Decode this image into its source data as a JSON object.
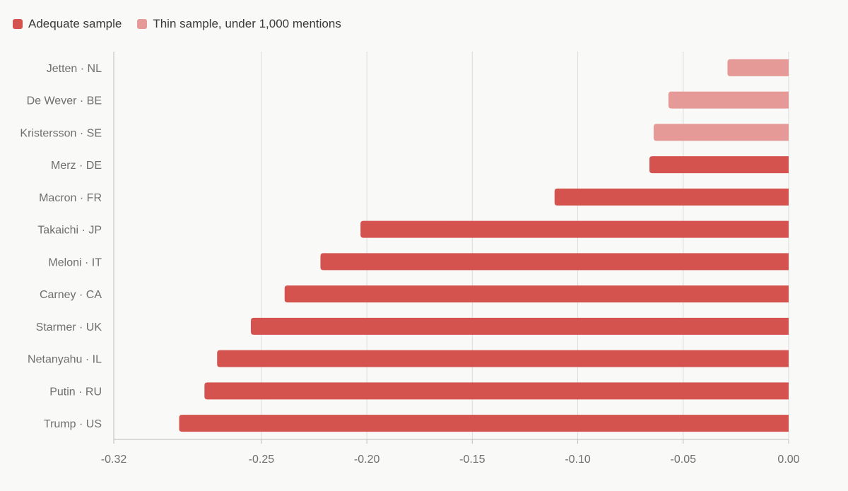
{
  "legend": {
    "adequate_label": "Adequate sample",
    "thin_label": "Thin sample, under 1,000 mentions"
  },
  "colors": {
    "adequate": "#d4534e",
    "thin": "#e59a97",
    "grid": "#dcdcdc",
    "axis": "#bdbdbd"
  },
  "chart_data": {
    "type": "bar",
    "orientation": "horizontal",
    "categories": [
      "Jetten · NL",
      "De Wever · BE",
      "Kristersson · SE",
      "Merz · DE",
      "Macron · FR",
      "Takaichi · JP",
      "Meloni · IT",
      "Carney · CA",
      "Starmer · UK",
      "Netanyahu · IL",
      "Putin · RU",
      "Trump · US"
    ],
    "values": [
      -0.029,
      -0.057,
      -0.064,
      -0.066,
      -0.111,
      -0.203,
      -0.222,
      -0.239,
      -0.255,
      -0.271,
      -0.277,
      -0.289
    ],
    "sample": [
      "thin",
      "thin",
      "thin",
      "adequate",
      "adequate",
      "adequate",
      "adequate",
      "adequate",
      "adequate",
      "adequate",
      "adequate",
      "adequate"
    ],
    "xlim": [
      -0.32,
      0.0
    ],
    "xticks": [
      -0.32,
      -0.25,
      -0.2,
      -0.15,
      -0.1,
      -0.05,
      0.0
    ],
    "xtick_labels": [
      "-0.32",
      "-0.25",
      "-0.20",
      "-0.15",
      "-0.10",
      "-0.05",
      "0.00"
    ],
    "grid": true,
    "legend_position": "top-left"
  }
}
